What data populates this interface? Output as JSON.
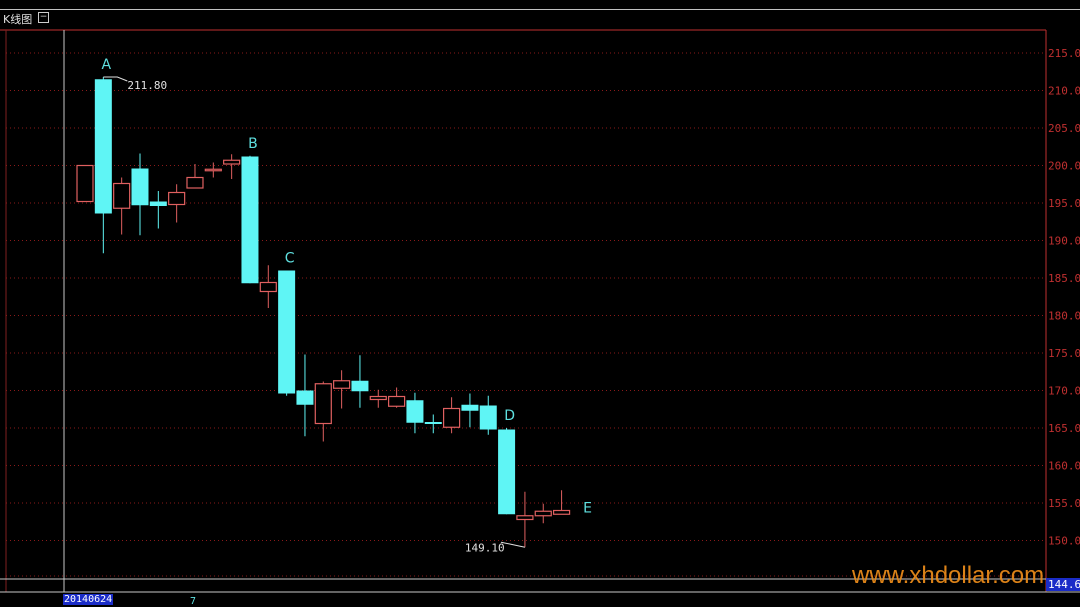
{
  "window": {
    "panel_title": "K线图",
    "collapse_icon": "collapse-box-icon"
  },
  "colors": {
    "up": "#e06060",
    "down": "#5ff5f5",
    "grid": "#8a1a1a",
    "axis": "#c03030",
    "label": "#5fe0e0",
    "background": "#000000"
  },
  "footer": {
    "start_date": "20140624",
    "tick": "7",
    "last_price": "144.6"
  },
  "watermark": "www.xhdollar.com",
  "chart_data": {
    "type": "candlestick",
    "ylim": [
      144.6,
      218
    ],
    "yticks": [
      "215.0",
      "210.0",
      "205.0",
      "200.0",
      "195.0",
      "190.0",
      "185.0",
      "180.0",
      "175.0",
      "170.0",
      "165.0",
      "160.0",
      "155.0",
      "150.0"
    ],
    "grid": true,
    "candles": [
      {
        "o": 195.2,
        "h": 200.0,
        "l": 195.2,
        "c": 200.0
      },
      {
        "o": 211.5,
        "h": 211.8,
        "l": 188.3,
        "c": 193.6
      },
      {
        "o": 194.3,
        "h": 198.4,
        "l": 190.8,
        "c": 197.6
      },
      {
        "o": 199.6,
        "h": 201.6,
        "l": 190.7,
        "c": 194.7
      },
      {
        "o": 195.2,
        "h": 196.6,
        "l": 191.6,
        "c": 194.6
      },
      {
        "o": 194.8,
        "h": 197.5,
        "l": 192.4,
        "c": 196.4
      },
      {
        "o": 197.0,
        "h": 200.2,
        "l": 197.0,
        "c": 198.4
      },
      {
        "o": 199.3,
        "h": 200.4,
        "l": 198.4,
        "c": 199.5
      },
      {
        "o": 200.2,
        "h": 201.5,
        "l": 198.2,
        "c": 200.7
      },
      {
        "o": 201.2,
        "h": 201.3,
        "l": 184.3,
        "c": 184.3
      },
      {
        "o": 183.2,
        "h": 186.7,
        "l": 181.0,
        "c": 184.4
      },
      {
        "o": 186.0,
        "h": 186.0,
        "l": 169.3,
        "c": 169.6
      },
      {
        "o": 170.0,
        "h": 174.8,
        "l": 163.9,
        "c": 168.1
      },
      {
        "o": 165.6,
        "h": 171.2,
        "l": 163.2,
        "c": 170.9
      },
      {
        "o": 170.3,
        "h": 172.7,
        "l": 167.6,
        "c": 171.3
      },
      {
        "o": 171.3,
        "h": 174.7,
        "l": 167.7,
        "c": 169.9
      },
      {
        "o": 168.8,
        "h": 170.1,
        "l": 167.7,
        "c": 169.2
      },
      {
        "o": 167.9,
        "h": 170.4,
        "l": 167.7,
        "c": 169.2
      },
      {
        "o": 168.7,
        "h": 169.7,
        "l": 164.3,
        "c": 165.7
      },
      {
        "o": 165.8,
        "h": 166.8,
        "l": 164.3,
        "c": 165.7
      },
      {
        "o": 165.1,
        "h": 169.1,
        "l": 164.3,
        "c": 167.6
      },
      {
        "o": 168.1,
        "h": 169.6,
        "l": 165.1,
        "c": 167.3
      },
      {
        "o": 168.0,
        "h": 169.3,
        "l": 164.1,
        "c": 164.8
      },
      {
        "o": 164.8,
        "h": 165.0,
        "l": 153.5,
        "c": 153.5
      },
      {
        "o": 152.8,
        "h": 156.5,
        "l": 149.1,
        "c": 153.3
      },
      {
        "o": 153.3,
        "h": 154.9,
        "l": 152.3,
        "c": 153.9
      },
      {
        "o": 153.5,
        "h": 156.7,
        "l": 153.5,
        "c": 154.0
      }
    ],
    "annotations": [
      {
        "text": "A",
        "candle": 1,
        "at": "high"
      },
      {
        "text": "B",
        "candle": 9,
        "at": "high"
      },
      {
        "text": "C",
        "candle": 11,
        "at": "high"
      },
      {
        "text": "D",
        "candle": 23,
        "at": "high"
      },
      {
        "text": "E",
        "candle": 26,
        "at": "right"
      }
    ],
    "price_labels": [
      {
        "text": "211.80",
        "candle": 1,
        "value": 211.8
      },
      {
        "text": "149.10",
        "candle": 24,
        "value": 149.1
      }
    ]
  }
}
